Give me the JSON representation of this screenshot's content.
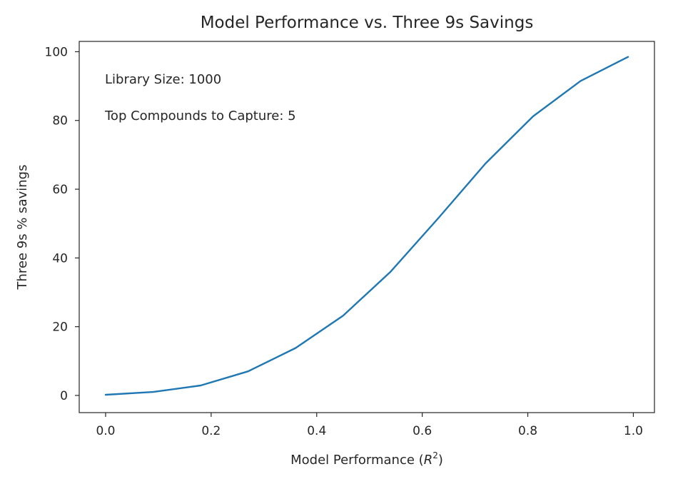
{
  "chart_data": {
    "type": "line",
    "title": "Model Performance vs. Three 9s Savings",
    "xlabel_prefix": "Model Performance (",
    "xlabel_var": "R",
    "xlabel_sup": "2",
    "xlabel_suffix": ")",
    "ylabel": "Three 9s % savings",
    "xlim": [
      -0.05,
      1.04
    ],
    "ylim": [
      -5,
      103
    ],
    "xticks": [
      0.0,
      0.2,
      0.4,
      0.6,
      0.8,
      1.0
    ],
    "xtick_labels": [
      "0.0",
      "0.2",
      "0.4",
      "0.6",
      "0.8",
      "1.0"
    ],
    "yticks": [
      0,
      20,
      40,
      60,
      80,
      100
    ],
    "ytick_labels": [
      "0",
      "20",
      "40",
      "60",
      "80",
      "100"
    ],
    "grid": false,
    "series": [
      {
        "color": "#1f77b4",
        "x": [
          0.0,
          0.09,
          0.18,
          0.27,
          0.36,
          0.45,
          0.54,
          0.63,
          0.72,
          0.81,
          0.9,
          0.99
        ],
        "y": [
          0.2,
          1.0,
          2.9,
          7.0,
          13.8,
          23.2,
          36.0,
          51.5,
          67.5,
          81.2,
          91.5,
          98.5
        ]
      }
    ],
    "annotations": [
      "Library Size: 1000",
      "Top Compounds to Capture: 5"
    ]
  }
}
